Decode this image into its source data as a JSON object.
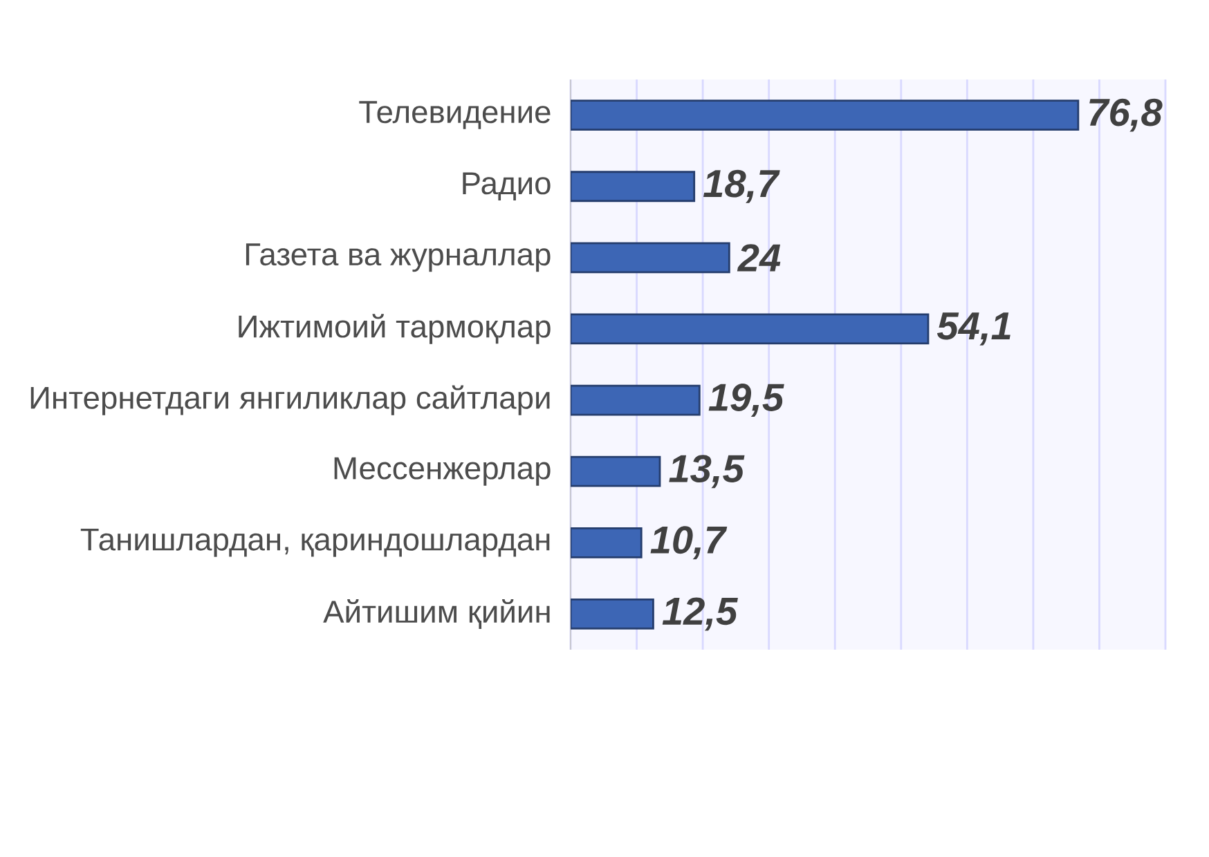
{
  "chart_data": {
    "type": "bar",
    "orientation": "horizontal",
    "categories": [
      "Телевидение",
      "Радио",
      "Газета ва журналлар",
      "Ижтимоий тармоқлар",
      "Интернетдаги янгиликлар сайтлари",
      "Мессенжерлар",
      "Танишлардан, қариндошлардан",
      "Айтишим қийин"
    ],
    "values": [
      76.8,
      18.7,
      24,
      54.1,
      19.5,
      13.5,
      10.7,
      12.5
    ],
    "value_labels": [
      "76,8",
      "18,7",
      "24",
      "54,1",
      "19,5",
      "13,5",
      "10,7",
      "12,5"
    ],
    "color": "#3d66b5",
    "xlim": [
      0,
      90
    ],
    "xticks": [
      {
        "value": 0,
        "label": null
      },
      {
        "value": 10,
        "label": null
      },
      {
        "value": 20,
        "label": null
      },
      {
        "value": 30,
        "label": null
      },
      {
        "value": 40,
        "label": null
      },
      {
        "value": 50,
        "label": null
      },
      {
        "value": 60,
        "label": null
      },
      {
        "value": 70,
        "label": null
      },
      {
        "value": 80,
        "label": null
      },
      {
        "value": 90,
        "label": null
      }
    ],
    "grid": "x",
    "tick_labels": "y"
  }
}
